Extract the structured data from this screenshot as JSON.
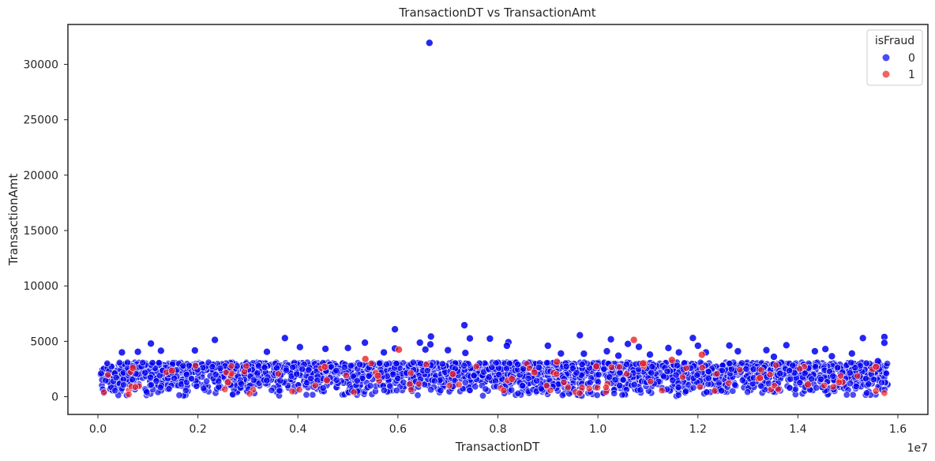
{
  "chart_data": {
    "type": "scatter",
    "title": "TransactionDT vs TransactionAmt",
    "xlabel": "TransactionDT",
    "ylabel": "TransactionAmt",
    "x_offset_label": "1e7",
    "xlim": [
      -0.06,
      1.66
    ],
    "ylim": [
      -1600,
      33600
    ],
    "x_ticks": [
      0.0,
      0.2,
      0.4,
      0.6,
      0.8,
      1.0,
      1.2,
      1.4,
      1.6
    ],
    "x_tick_labels": [
      "0.0",
      "0.2",
      "0.4",
      "0.6",
      "0.8",
      "1.0",
      "1.2",
      "1.4",
      "1.6"
    ],
    "y_ticks": [
      0,
      5000,
      10000,
      15000,
      20000,
      25000,
      30000
    ],
    "y_tick_labels": [
      "0",
      "5000",
      "10000",
      "15000",
      "20000",
      "25000",
      "30000"
    ],
    "grid": false,
    "legend": {
      "title": "isFraud",
      "placement": "top-right",
      "entries": [
        "0",
        "1"
      ]
    },
    "colors": {
      "0": "#0000ee",
      "1": "#ee2222"
    },
    "series": [
      {
        "name": "0",
        "points": [
          [
            0.663,
            31938
          ],
          [
            0.733,
            6451
          ],
          [
            0.594,
            6085
          ],
          [
            0.964,
            5550
          ],
          [
            1.573,
            5389
          ],
          [
            0.666,
            5430
          ],
          [
            0.744,
            5260
          ],
          [
            0.374,
            5290
          ],
          [
            0.784,
            5240
          ],
          [
            0.234,
            5130
          ],
          [
            1.53,
            5287
          ],
          [
            1.19,
            5300
          ],
          [
            1.026,
            5180
          ],
          [
            0.106,
            4800
          ],
          [
            0.534,
            4880
          ],
          [
            0.821,
            4920
          ],
          [
            0.665,
            4720
          ],
          [
            0.644,
            4880
          ],
          [
            0.9,
            4600
          ],
          [
            1.06,
            4760
          ],
          [
            1.2,
            4600
          ],
          [
            1.263,
            4620
          ],
          [
            1.377,
            4650
          ],
          [
            1.573,
            4860
          ],
          [
            0.404,
            4480
          ],
          [
            0.5,
            4400
          ],
          [
            0.455,
            4320
          ],
          [
            0.594,
            4360
          ],
          [
            0.7,
            4200
          ],
          [
            0.818,
            4600
          ],
          [
            1.082,
            4500
          ],
          [
            1.141,
            4400
          ],
          [
            1.337,
            4200
          ],
          [
            1.434,
            4100
          ],
          [
            1.455,
            4300
          ],
          [
            0.126,
            4150
          ],
          [
            0.194,
            4180
          ],
          [
            0.338,
            4050
          ],
          [
            0.572,
            4000
          ],
          [
            0.655,
            4260
          ],
          [
            1.018,
            4100
          ],
          [
            1.162,
            4000
          ],
          [
            1.216,
            4000
          ],
          [
            1.28,
            4100
          ],
          [
            1.508,
            3900
          ],
          [
            0.08,
            4050
          ],
          [
            0.048,
            4000
          ],
          [
            0.735,
            3950
          ],
          [
            0.926,
            3900
          ],
          [
            0.972,
            3880
          ],
          [
            1.041,
            3700
          ],
          [
            1.104,
            3800
          ],
          [
            1.352,
            3600
          ],
          [
            1.468,
            3650
          ],
          [
            1.56,
            3200
          ]
        ],
        "band": {
          "x_min": 0.005,
          "x_max": 1.58,
          "y_min": 0,
          "y_max_typical": 3100,
          "density": "dense"
        }
      },
      {
        "name": "1",
        "points": [
          [
            0.602,
            4250
          ],
          [
            1.072,
            5130
          ],
          [
            1.208,
            3790
          ],
          [
            1.148,
            3320
          ],
          [
            1.09,
            3000
          ],
          [
            0.454,
            2700
          ],
          [
            0.535,
            3400
          ],
          [
            0.918,
            3150
          ],
          [
            0.07,
            2600
          ],
          [
            0.148,
            2350
          ],
          [
            0.26,
            1300
          ],
          [
            0.56,
            1900
          ],
          [
            0.71,
            2050
          ],
          [
            0.828,
            1600
          ],
          [
            0.997,
            2750
          ],
          [
            1.324,
            1700
          ],
          [
            1.42,
            1100
          ],
          [
            1.556,
            2700
          ],
          [
            0.458,
            1500
          ],
          [
            0.873,
            2200
          ]
        ]
      }
    ]
  }
}
